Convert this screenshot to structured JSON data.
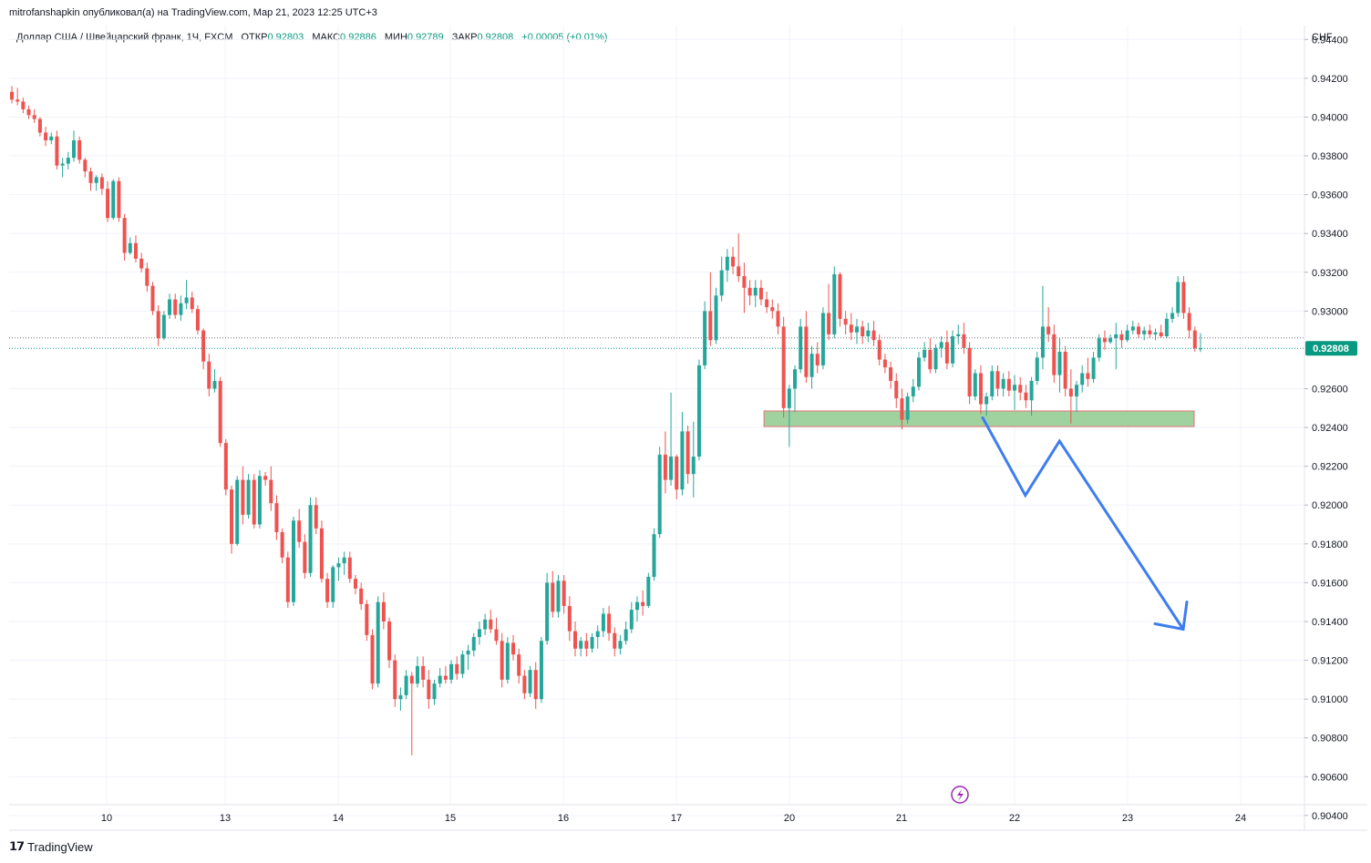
{
  "header": {
    "publisher_line": "mitrofanshapkin опубликовал(а) на TradingView.com, Мар 21, 2023 12:25 UTC+3"
  },
  "legend": {
    "symbol": "Доллар США / Швейцарский франк, 1Ч, FXCM",
    "open_label": "ОТКР",
    "open": "0.92803",
    "high_label": "МАКС",
    "high": "0.92886",
    "low_label": "МИН",
    "low": "0.92789",
    "close_label": "ЗАКР",
    "close": "0.92808",
    "change": "+0.00005 (+0.01%)"
  },
  "footer": {
    "logo_text": "TradingView",
    "logo_icon": "tradingview-logo-icon"
  },
  "colors": {
    "up": "#26a69a",
    "down": "#ef5350",
    "zone": "#8fca8f",
    "arrow": "#3d7df0",
    "grid": "#f0f3fa",
    "price_tag": "#089981"
  },
  "chart_data": {
    "type": "candlestick",
    "currency": "CHF",
    "ylim": [
      0.904,
      0.945
    ],
    "y_ticks": [
      "0.94400",
      "0.94200",
      "0.94000",
      "0.93800",
      "0.93600",
      "0.93400",
      "0.93200",
      "0.93000",
      "0.92600",
      "0.92400",
      "0.92200",
      "0.92000",
      "0.91800",
      "0.91600",
      "0.91400",
      "0.91200",
      "0.91000",
      "0.90800",
      "0.90600",
      "0.90400"
    ],
    "x_ticks": [
      "10",
      "13",
      "14",
      "15",
      "16",
      "17",
      "20",
      "21",
      "22",
      "23",
      "24"
    ],
    "last_price": "0.92808",
    "last_price_value": 0.92808,
    "reference_line_value": 0.92862,
    "support_zone": {
      "low": 0.92405,
      "high": 0.92485,
      "from_index": 134
    },
    "projection_path": [
      {
        "step": 158,
        "price": 0.9245
      },
      {
        "step": 168,
        "price": 0.9205
      },
      {
        "step": 176,
        "price": 0.9233
      },
      {
        "step": 205,
        "price": 0.9136
      }
    ],
    "candles": [
      [
        0.9413,
        0.9416,
        0.9407,
        0.9409
      ],
      [
        0.9409,
        0.9415,
        0.9406,
        0.9408
      ],
      [
        0.9408,
        0.941,
        0.9402,
        0.9404
      ],
      [
        0.9404,
        0.9406,
        0.9399,
        0.9401
      ],
      [
        0.9401,
        0.9404,
        0.9397,
        0.9399
      ],
      [
        0.9399,
        0.94,
        0.939,
        0.9392
      ],
      [
        0.9392,
        0.9395,
        0.9385,
        0.9388
      ],
      [
        0.9388,
        0.9392,
        0.9386,
        0.939
      ],
      [
        0.939,
        0.9393,
        0.9373,
        0.9375
      ],
      [
        0.9375,
        0.9379,
        0.9369,
        0.9376
      ],
      [
        0.9376,
        0.9382,
        0.9373,
        0.9379
      ],
      [
        0.9379,
        0.9393,
        0.9377,
        0.9388
      ],
      [
        0.9388,
        0.939,
        0.9376,
        0.9378
      ],
      [
        0.9378,
        0.9379,
        0.9369,
        0.9372
      ],
      [
        0.9372,
        0.9374,
        0.9362,
        0.9366
      ],
      [
        0.9366,
        0.937,
        0.9362,
        0.9369
      ],
      [
        0.9369,
        0.9371,
        0.936,
        0.9363
      ],
      [
        0.9363,
        0.9367,
        0.9346,
        0.9348
      ],
      [
        0.9348,
        0.9368,
        0.9347,
        0.9367
      ],
      [
        0.9367,
        0.9369,
        0.9346,
        0.9348
      ],
      [
        0.9348,
        0.935,
        0.9326,
        0.933
      ],
      [
        0.933,
        0.9338,
        0.9329,
        0.9335
      ],
      [
        0.9335,
        0.9339,
        0.9325,
        0.9327
      ],
      [
        0.9327,
        0.933,
        0.932,
        0.9322
      ],
      [
        0.9322,
        0.9325,
        0.931,
        0.9313
      ],
      [
        0.9313,
        0.9315,
        0.9298,
        0.93
      ],
      [
        0.93,
        0.9303,
        0.9282,
        0.9286
      ],
      [
        0.9286,
        0.93,
        0.9285,
        0.9298
      ],
      [
        0.9298,
        0.9309,
        0.9296,
        0.9306
      ],
      [
        0.9306,
        0.9309,
        0.9296,
        0.9298
      ],
      [
        0.9298,
        0.9308,
        0.9295,
        0.9304
      ],
      [
        0.9304,
        0.9316,
        0.9301,
        0.9307
      ],
      [
        0.9307,
        0.931,
        0.9299,
        0.9301
      ],
      [
        0.9301,
        0.9303,
        0.9288,
        0.929
      ],
      [
        0.929,
        0.9291,
        0.927,
        0.9274
      ],
      [
        0.9274,
        0.9278,
        0.9256,
        0.926
      ],
      [
        0.926,
        0.927,
        0.9258,
        0.9264
      ],
      [
        0.9264,
        0.9266,
        0.923,
        0.9232
      ],
      [
        0.9232,
        0.9234,
        0.9205,
        0.9208
      ],
      [
        0.9208,
        0.921,
        0.9175,
        0.918
      ],
      [
        0.918,
        0.9215,
        0.9179,
        0.9213
      ],
      [
        0.9213,
        0.922,
        0.919,
        0.9195
      ],
      [
        0.9195,
        0.9216,
        0.9193,
        0.9213
      ],
      [
        0.9213,
        0.9216,
        0.9188,
        0.919
      ],
      [
        0.919,
        0.9218,
        0.9188,
        0.9215
      ],
      [
        0.9215,
        0.9217,
        0.921,
        0.9213
      ],
      [
        0.9213,
        0.922,
        0.9197,
        0.9201
      ],
      [
        0.9201,
        0.9205,
        0.9182,
        0.9186
      ],
      [
        0.9186,
        0.9188,
        0.917,
        0.9173
      ],
      [
        0.9173,
        0.9176,
        0.9147,
        0.915
      ],
      [
        0.915,
        0.9194,
        0.9148,
        0.9192
      ],
      [
        0.9192,
        0.9198,
        0.9178,
        0.9181
      ],
      [
        0.9181,
        0.9185,
        0.9162,
        0.9165
      ],
      [
        0.9165,
        0.9204,
        0.9163,
        0.92
      ],
      [
        0.92,
        0.9204,
        0.9185,
        0.9188
      ],
      [
        0.9188,
        0.9192,
        0.916,
        0.9162
      ],
      [
        0.9162,
        0.9165,
        0.9147,
        0.915
      ],
      [
        0.915,
        0.9169,
        0.9147,
        0.9168
      ],
      [
        0.9168,
        0.9173,
        0.9161,
        0.917
      ],
      [
        0.917,
        0.9176,
        0.9164,
        0.9173
      ],
      [
        0.9173,
        0.9176,
        0.916,
        0.9162
      ],
      [
        0.9162,
        0.9164,
        0.9154,
        0.9157
      ],
      [
        0.9157,
        0.916,
        0.9146,
        0.9149
      ],
      [
        0.9149,
        0.9151,
        0.913,
        0.9133
      ],
      [
        0.9133,
        0.9136,
        0.9105,
        0.9108
      ],
      [
        0.9108,
        0.9153,
        0.9106,
        0.915
      ],
      [
        0.915,
        0.9155,
        0.9136,
        0.914
      ],
      [
        0.914,
        0.9142,
        0.9116,
        0.912
      ],
      [
        0.912,
        0.9123,
        0.9096,
        0.91
      ],
      [
        0.91,
        0.9106,
        0.9094,
        0.9102
      ],
      [
        0.9102,
        0.9115,
        0.91,
        0.9112
      ],
      [
        0.9112,
        0.9114,
        0.9071,
        0.9108
      ],
      [
        0.9108,
        0.9122,
        0.9106,
        0.9117
      ],
      [
        0.9117,
        0.9122,
        0.9106,
        0.911
      ],
      [
        0.911,
        0.9115,
        0.9095,
        0.91
      ],
      [
        0.91,
        0.911,
        0.9097,
        0.9108
      ],
      [
        0.9108,
        0.9116,
        0.9106,
        0.9112
      ],
      [
        0.9112,
        0.9117,
        0.9108,
        0.911
      ],
      [
        0.911,
        0.912,
        0.9108,
        0.9118
      ],
      [
        0.9118,
        0.9122,
        0.911,
        0.9113
      ],
      [
        0.9113,
        0.9125,
        0.9111,
        0.9123
      ],
      [
        0.9123,
        0.9128,
        0.9115,
        0.9125
      ],
      [
        0.9125,
        0.9134,
        0.9122,
        0.9132
      ],
      [
        0.9132,
        0.914,
        0.9128,
        0.9136
      ],
      [
        0.9136,
        0.9144,
        0.9133,
        0.9141
      ],
      [
        0.9141,
        0.9146,
        0.9134,
        0.9136
      ],
      [
        0.9136,
        0.9142,
        0.9128,
        0.913
      ],
      [
        0.913,
        0.9134,
        0.9106,
        0.911
      ],
      [
        0.911,
        0.9132,
        0.9108,
        0.9129
      ],
      [
        0.9129,
        0.9133,
        0.912,
        0.9123
      ],
      [
        0.9123,
        0.9126,
        0.9108,
        0.9112
      ],
      [
        0.9112,
        0.9115,
        0.91,
        0.9103
      ],
      [
        0.9103,
        0.9117,
        0.9101,
        0.9115
      ],
      [
        0.9115,
        0.9119,
        0.9095,
        0.91
      ],
      [
        0.91,
        0.9132,
        0.9098,
        0.913
      ],
      [
        0.913,
        0.9165,
        0.9128,
        0.916
      ],
      [
        0.916,
        0.9166,
        0.9142,
        0.9145
      ],
      [
        0.9145,
        0.9164,
        0.9142,
        0.9161
      ],
      [
        0.9161,
        0.9164,
        0.9144,
        0.9148
      ],
      [
        0.9148,
        0.9153,
        0.913,
        0.9135
      ],
      [
        0.9135,
        0.914,
        0.9122,
        0.9126
      ],
      [
        0.9126,
        0.9132,
        0.9122,
        0.913
      ],
      [
        0.913,
        0.9134,
        0.9122,
        0.9126
      ],
      [
        0.9126,
        0.9134,
        0.9124,
        0.9132
      ],
      [
        0.9132,
        0.9138,
        0.9126,
        0.9135
      ],
      [
        0.9135,
        0.9147,
        0.9132,
        0.9144
      ],
      [
        0.9144,
        0.9148,
        0.913,
        0.9134
      ],
      [
        0.9134,
        0.9137,
        0.9122,
        0.9126
      ],
      [
        0.9126,
        0.9133,
        0.9123,
        0.913
      ],
      [
        0.913,
        0.914,
        0.9128,
        0.9136
      ],
      [
        0.9136,
        0.915,
        0.9134,
        0.9146
      ],
      [
        0.9146,
        0.9153,
        0.914,
        0.915
      ],
      [
        0.915,
        0.9156,
        0.9143,
        0.9148
      ],
      [
        0.9148,
        0.9165,
        0.9147,
        0.9163
      ],
      [
        0.9163,
        0.9188,
        0.9161,
        0.9185
      ],
      [
        0.9185,
        0.923,
        0.9183,
        0.9226
      ],
      [
        0.9226,
        0.9238,
        0.9206,
        0.9213
      ],
      [
        0.9213,
        0.9258,
        0.921,
        0.9225
      ],
      [
        0.9225,
        0.9226,
        0.9203,
        0.9208
      ],
      [
        0.9208,
        0.9248,
        0.9205,
        0.9238
      ],
      [
        0.9238,
        0.9241,
        0.9211,
        0.9216
      ],
      [
        0.9216,
        0.9243,
        0.9204,
        0.9225
      ],
      [
        0.9225,
        0.9275,
        0.9223,
        0.9272
      ],
      [
        0.9272,
        0.9305,
        0.927,
        0.93
      ],
      [
        0.93,
        0.932,
        0.9282,
        0.9285
      ],
      [
        0.9285,
        0.9312,
        0.9283,
        0.9308
      ],
      [
        0.9308,
        0.9328,
        0.9305,
        0.9321
      ],
      [
        0.9321,
        0.9332,
        0.9315,
        0.9328
      ],
      [
        0.9328,
        0.9333,
        0.9319,
        0.9323
      ],
      [
        0.9323,
        0.934,
        0.9315,
        0.9318
      ],
      [
        0.9318,
        0.9325,
        0.9299,
        0.9312
      ],
      [
        0.9312,
        0.9316,
        0.9303,
        0.9308
      ],
      [
        0.9308,
        0.9316,
        0.9302,
        0.9312
      ],
      [
        0.9312,
        0.9316,
        0.9303,
        0.9306
      ],
      [
        0.9306,
        0.931,
        0.9299,
        0.9302
      ],
      [
        0.9302,
        0.9306,
        0.9296,
        0.93
      ],
      [
        0.93,
        0.9304,
        0.9288,
        0.9292
      ],
      [
        0.9292,
        0.9297,
        0.9245,
        0.925
      ],
      [
        0.925,
        0.9262,
        0.923,
        0.926
      ],
      [
        0.926,
        0.9272,
        0.9248,
        0.927
      ],
      [
        0.927,
        0.9296,
        0.9268,
        0.9292
      ],
      [
        0.9292,
        0.93,
        0.9263,
        0.9266
      ],
      [
        0.9266,
        0.9282,
        0.926,
        0.9278
      ],
      [
        0.9278,
        0.9284,
        0.9268,
        0.9272
      ],
      [
        0.9272,
        0.9302,
        0.927,
        0.9299
      ],
      [
        0.9299,
        0.9314,
        0.9285,
        0.9288
      ],
      [
        0.9288,
        0.9323,
        0.9286,
        0.9319
      ],
      [
        0.9319,
        0.932,
        0.9292,
        0.9296
      ],
      [
        0.9296,
        0.93,
        0.9288,
        0.9293
      ],
      [
        0.9293,
        0.9299,
        0.9285,
        0.9289
      ],
      [
        0.9289,
        0.9296,
        0.9283,
        0.9292
      ],
      [
        0.9292,
        0.9295,
        0.9283,
        0.9287
      ],
      [
        0.9287,
        0.9294,
        0.9284,
        0.929
      ],
      [
        0.929,
        0.9295,
        0.9282,
        0.9285
      ],
      [
        0.9285,
        0.9288,
        0.9272,
        0.9275
      ],
      [
        0.9275,
        0.9278,
        0.9268,
        0.9271
      ],
      [
        0.9271,
        0.9274,
        0.926,
        0.9264
      ],
      [
        0.9264,
        0.9268,
        0.925,
        0.9255
      ],
      [
        0.9255,
        0.926,
        0.9239,
        0.9244
      ],
      [
        0.9244,
        0.9258,
        0.9242,
        0.9256
      ],
      [
        0.9256,
        0.9265,
        0.9253,
        0.9261
      ],
      [
        0.9261,
        0.9279,
        0.9259,
        0.9276
      ],
      [
        0.9276,
        0.9284,
        0.9274,
        0.928
      ],
      [
        0.928,
        0.9286,
        0.9268,
        0.927
      ],
      [
        0.927,
        0.9283,
        0.9268,
        0.9281
      ],
      [
        0.9281,
        0.9287,
        0.9276,
        0.9284
      ],
      [
        0.9284,
        0.929,
        0.927,
        0.9273
      ],
      [
        0.9273,
        0.929,
        0.9271,
        0.9287
      ],
      [
        0.9287,
        0.9293,
        0.9283,
        0.9288
      ],
      [
        0.9288,
        0.9294,
        0.9278,
        0.9281
      ],
      [
        0.9281,
        0.9284,
        0.9252,
        0.9256
      ],
      [
        0.9256,
        0.927,
        0.9254,
        0.9268
      ],
      [
        0.9268,
        0.9272,
        0.9247,
        0.9252
      ],
      [
        0.9252,
        0.9258,
        0.9246,
        0.9256
      ],
      [
        0.9256,
        0.9272,
        0.9254,
        0.9269
      ],
      [
        0.9269,
        0.9272,
        0.9256,
        0.926
      ],
      [
        0.926,
        0.9268,
        0.9256,
        0.9265
      ],
      [
        0.9265,
        0.9269,
        0.9256,
        0.9259
      ],
      [
        0.9259,
        0.9267,
        0.9249,
        0.9262
      ],
      [
        0.9262,
        0.9266,
        0.9254,
        0.9258
      ],
      [
        0.9258,
        0.9262,
        0.925,
        0.9254
      ],
      [
        0.9254,
        0.9266,
        0.9246,
        0.9264
      ],
      [
        0.9264,
        0.9279,
        0.9262,
        0.9276
      ],
      [
        0.9276,
        0.9313,
        0.927,
        0.9292
      ],
      [
        0.9292,
        0.9302,
        0.9284,
        0.9288
      ],
      [
        0.9288,
        0.9293,
        0.9263,
        0.9267
      ],
      [
        0.9267,
        0.9286,
        0.9258,
        0.9279
      ],
      [
        0.9279,
        0.9282,
        0.9256,
        0.926
      ],
      [
        0.926,
        0.927,
        0.9242,
        0.9256
      ],
      [
        0.9256,
        0.9264,
        0.9248,
        0.9262
      ],
      [
        0.9262,
        0.9272,
        0.9258,
        0.9268
      ],
      [
        0.9268,
        0.9276,
        0.9261,
        0.9265
      ],
      [
        0.9265,
        0.9279,
        0.9263,
        0.9276
      ],
      [
        0.9276,
        0.9288,
        0.9274,
        0.9286
      ],
      [
        0.9286,
        0.929,
        0.928,
        0.9284
      ],
      [
        0.9284,
        0.9288,
        0.9283,
        0.9286
      ],
      [
        0.9286,
        0.9294,
        0.927,
        0.9288
      ],
      [
        0.9288,
        0.929,
        0.9281,
        0.9285
      ],
      [
        0.9285,
        0.9293,
        0.9284,
        0.929
      ],
      [
        0.929,
        0.9295,
        0.9288,
        0.9292
      ],
      [
        0.9292,
        0.9294,
        0.9286,
        0.9288
      ],
      [
        0.9288,
        0.9292,
        0.9285,
        0.929
      ],
      [
        0.929,
        0.9293,
        0.9286,
        0.9288
      ],
      [
        0.9288,
        0.9291,
        0.9285,
        0.9289
      ],
      [
        0.9289,
        0.9293,
        0.9286,
        0.9287
      ],
      [
        0.9287,
        0.9299,
        0.9286,
        0.9296
      ],
      [
        0.9296,
        0.9302,
        0.9294,
        0.9299
      ],
      [
        0.9299,
        0.9318,
        0.9297,
        0.9315
      ],
      [
        0.9315,
        0.9318,
        0.9296,
        0.9299
      ],
      [
        0.9299,
        0.9302,
        0.9286,
        0.929
      ],
      [
        0.929,
        0.9292,
        0.9279,
        0.92808
      ],
      [
        0.92803,
        0.92886,
        0.92789,
        0.92808
      ]
    ]
  }
}
